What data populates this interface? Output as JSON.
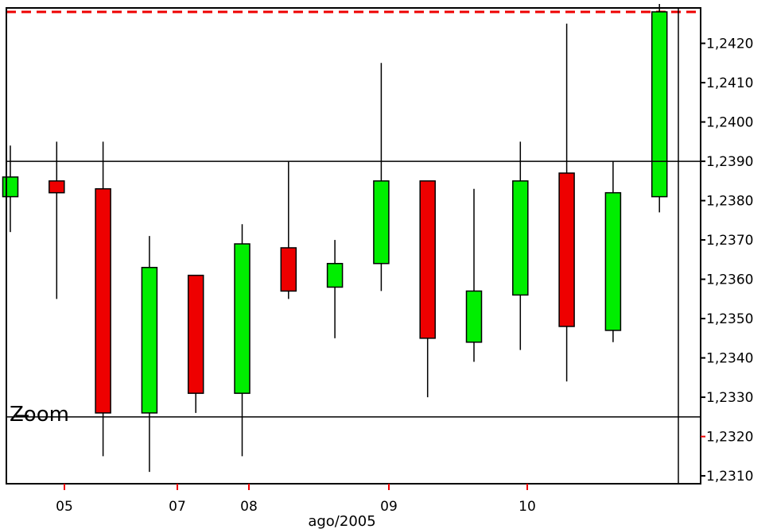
{
  "chart_data": {
    "type": "candlestick",
    "xlabel": "ago/2005",
    "x_tick_labels": [
      "05",
      "07",
      "08",
      "09",
      "10"
    ],
    "y_tick_labels": [
      "1,2420",
      "1,2410",
      "1,2400",
      "1,2390",
      "1,2380",
      "1,2370",
      "1,2360",
      "1,2350",
      "1,2340",
      "1,2330",
      "1,2320",
      "1,2310"
    ],
    "ylim": [
      1.2308,
      1.2429
    ],
    "highlighted_tick": "1,2320",
    "reference_line": 1.2428,
    "crosshair_y": 1.239,
    "zoom_line_y": 1.2325,
    "zoom_label": "Zoom",
    "up_color": "#00ee00",
    "down_color": "#ee0000",
    "reference_color": "#ee0000",
    "highlight_color": "#0000ff",
    "candles": [
      {
        "open": 1.2381,
        "high": 1.2394,
        "low": 1.2372,
        "close": 1.2386
      },
      {
        "open": 1.2385,
        "high": 1.2395,
        "low": 1.2355,
        "close": 1.2382
      },
      {
        "open": 1.2383,
        "high": 1.2395,
        "low": 1.2315,
        "close": 1.2326
      },
      {
        "open": 1.2326,
        "high": 1.2371,
        "low": 1.2311,
        "close": 1.2363
      },
      {
        "open": 1.2361,
        "high": 1.2361,
        "low": 1.2326,
        "close": 1.2331
      },
      {
        "open": 1.2331,
        "high": 1.2374,
        "low": 1.2315,
        "close": 1.2369
      },
      {
        "open": 1.2368,
        "high": 1.239,
        "low": 1.2355,
        "close": 1.2357
      },
      {
        "open": 1.2358,
        "high": 1.237,
        "low": 1.2345,
        "close": 1.2364
      },
      {
        "open": 1.2364,
        "high": 1.2415,
        "low": 1.2357,
        "close": 1.2385
      },
      {
        "open": 1.2385,
        "high": 1.2385,
        "low": 1.233,
        "close": 1.2345
      },
      {
        "open": 1.2344,
        "high": 1.2383,
        "low": 1.2339,
        "close": 1.2357
      },
      {
        "open": 1.2356,
        "high": 1.2395,
        "low": 1.2342,
        "close": 1.2385
      },
      {
        "open": 1.2387,
        "high": 1.2425,
        "low": 1.2334,
        "close": 1.2348
      },
      {
        "open": 1.2347,
        "high": 1.239,
        "low": 1.2344,
        "close": 1.2382
      },
      {
        "open": 1.2381,
        "high": 1.243,
        "low": 1.2377,
        "close": 1.2428
      }
    ]
  }
}
